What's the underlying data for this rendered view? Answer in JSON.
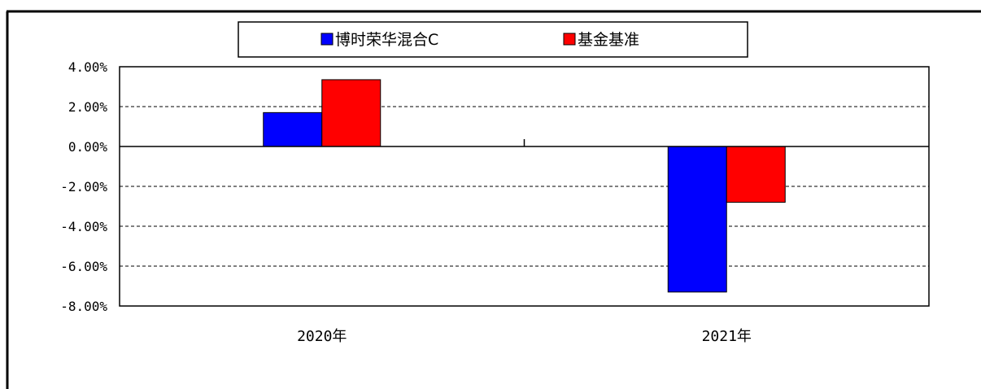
{
  "chart_data": {
    "type": "bar",
    "categories": [
      "2020年",
      "2021年"
    ],
    "series": [
      {
        "name": "博时荣华混合C",
        "values": [
          1.7,
          -7.3
        ],
        "color": "#0000ff"
      },
      {
        "name": "基金基准",
        "values": [
          3.35,
          -2.8
        ],
        "color": "#ff0000"
      }
    ],
    "ylim": [
      -8,
      4
    ],
    "yticks": [
      4,
      2,
      0,
      -2,
      -4,
      -6,
      -8
    ],
    "ytick_labels": [
      "4.00%",
      "2.00%",
      "0.00%",
      "-2.00%",
      "-4.00%",
      "-6.00%",
      "-8.00%"
    ],
    "grid": true,
    "legend_position": "top"
  }
}
